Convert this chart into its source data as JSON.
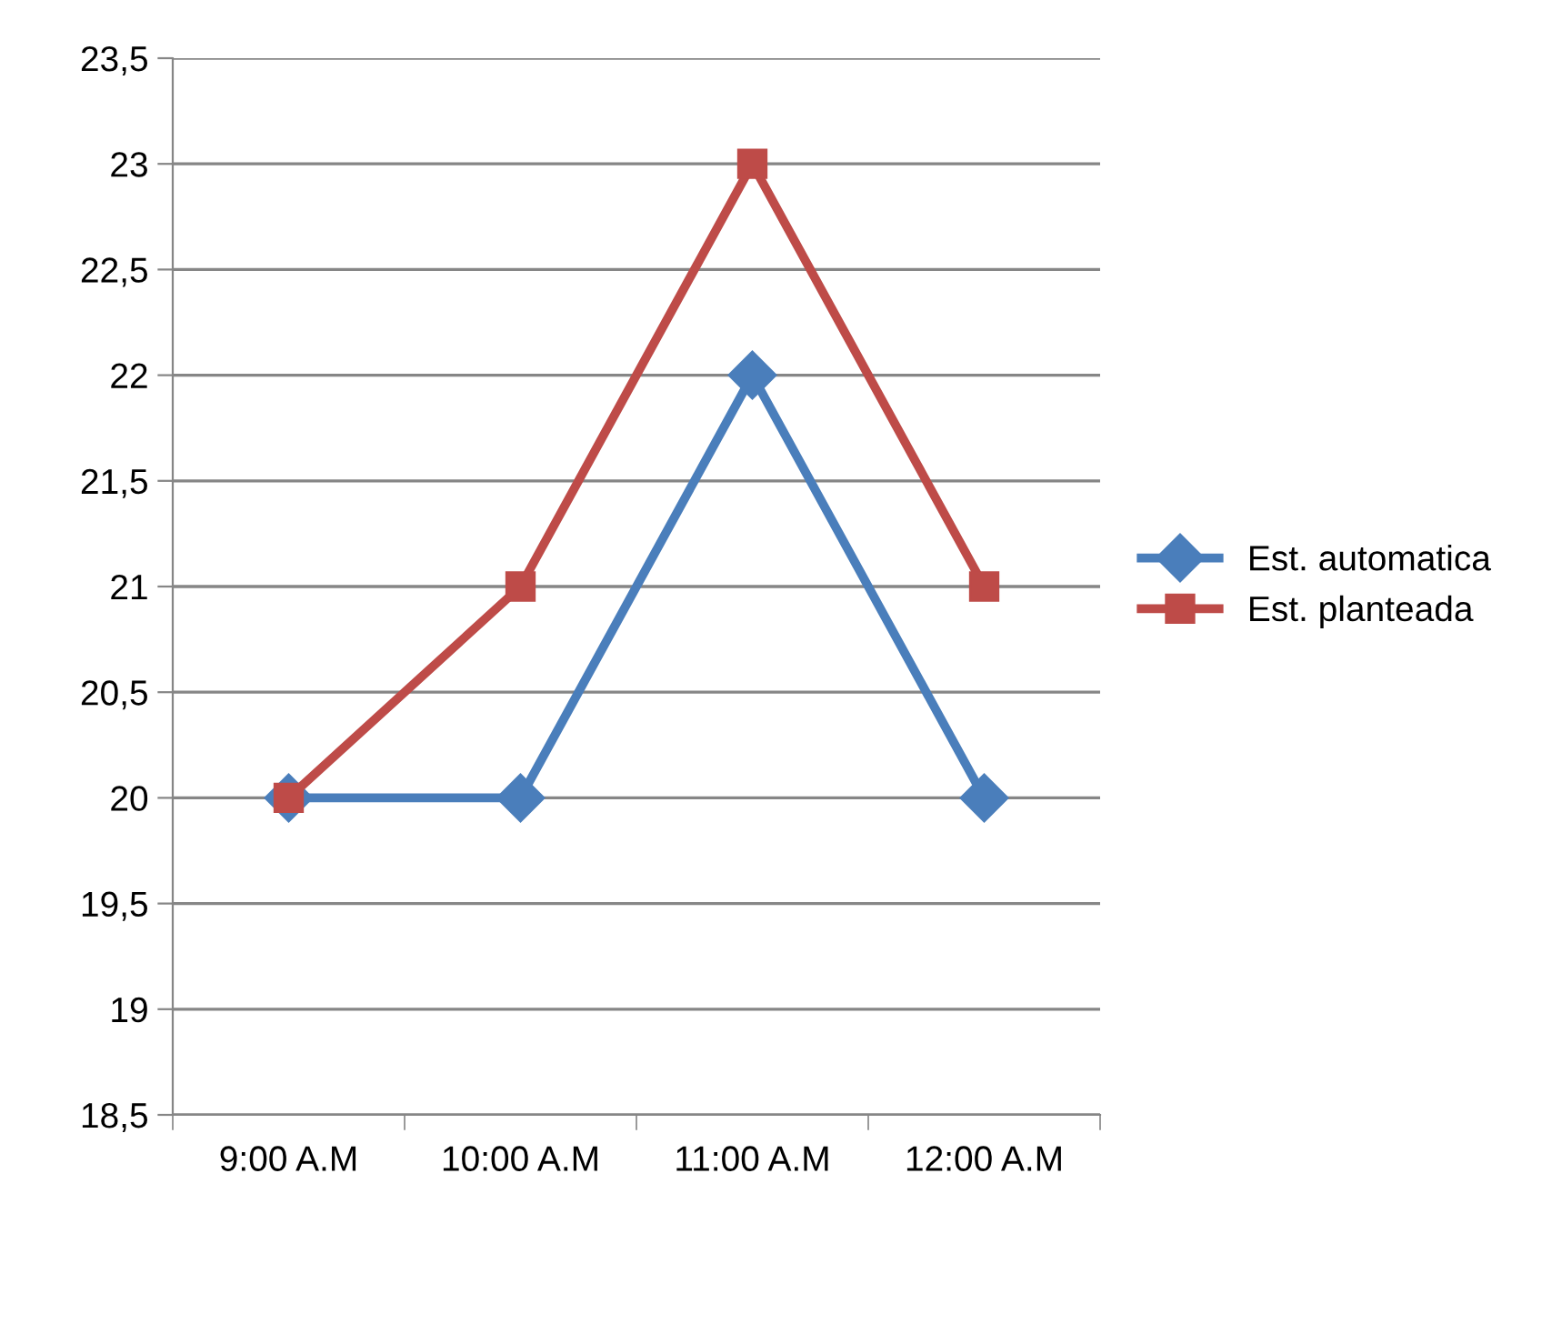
{
  "chart_data": {
    "type": "line",
    "categories": [
      "9:00 A.M",
      "10:00 A.M",
      "11:00 A.M",
      "12:00 A.M"
    ],
    "series": [
      {
        "name": "Est. automatica",
        "color": "#4a7ebb",
        "marker": "diamond",
        "values": [
          20,
          20,
          22,
          20
        ]
      },
      {
        "name": "Est. planteada",
        "color": "#be4b48",
        "marker": "square",
        "values": [
          20,
          21,
          23,
          21
        ]
      }
    ],
    "ylim": [
      18.5,
      23.5
    ],
    "yticks": [
      {
        "value": 18.5,
        "label": "18,5"
      },
      {
        "value": 19,
        "label": "19"
      },
      {
        "value": 19.5,
        "label": "19,5"
      },
      {
        "value": 20,
        "label": "20"
      },
      {
        "value": 20.5,
        "label": "20,5"
      },
      {
        "value": 21,
        "label": "21"
      },
      {
        "value": 21.5,
        "label": "21,5"
      },
      {
        "value": 22,
        "label": "22"
      },
      {
        "value": 22.5,
        "label": "22,5"
      },
      {
        "value": 23,
        "label": "23"
      },
      {
        "value": 23.5,
        "label": "23,5"
      }
    ],
    "grid": "y",
    "legend": "right",
    "line_style": "solid"
  }
}
